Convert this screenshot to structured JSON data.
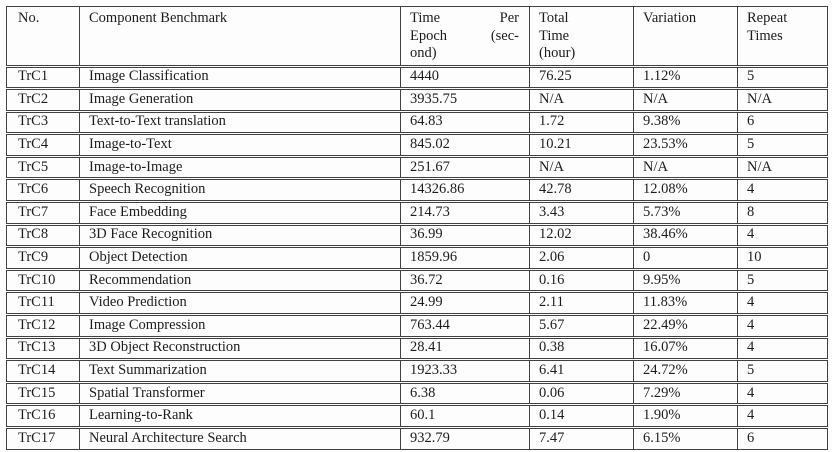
{
  "colors": {
    "background": "#fdfdfd",
    "border": "#414141",
    "text": "#1c1c1c"
  },
  "table": {
    "columns": [
      {
        "id": "no",
        "label": "No."
      },
      {
        "id": "component",
        "label": "Component Benchmark"
      },
      {
        "id": "time-per-epoch",
        "label": "Time Per\nEpoch (sec-\nond)"
      },
      {
        "id": "total-time",
        "label": "Total\nTime\n(hour)"
      },
      {
        "id": "variation",
        "label": "Variation"
      },
      {
        "id": "repeat-times",
        "label": "Repeat\nTimes"
      }
    ],
    "rows": [
      [
        "TrC1",
        "Image Classification",
        "4440",
        "76.25",
        "1.12%",
        "5"
      ],
      [
        "TrC2",
        "Image Generation",
        "3935.75",
        "N/A",
        "N/A",
        "N/A"
      ],
      [
        "TrC3",
        "Text-to-Text translation",
        "64.83",
        "1.72",
        "9.38%",
        "6"
      ],
      [
        "TrC4",
        "Image-to-Text",
        "845.02",
        "10.21",
        "23.53%",
        "5"
      ],
      [
        "TrC5",
        "Image-to-Image",
        "251.67",
        "N/A",
        "N/A",
        "N/A"
      ],
      [
        "TrC6",
        "Speech Recognition",
        "14326.86",
        "42.78",
        "12.08%",
        "4"
      ],
      [
        "TrC7",
        "Face Embedding",
        "214.73",
        "3.43",
        "5.73%",
        "8"
      ],
      [
        "TrC8",
        "3D Face Recognition",
        "36.99",
        "12.02",
        "38.46%",
        "4"
      ],
      [
        "TrC9",
        "Object Detection",
        "1859.96",
        "2.06",
        "0",
        "10"
      ],
      [
        "TrC10",
        "Recommendation",
        "36.72",
        "0.16",
        "9.95%",
        "5"
      ],
      [
        "TrC11",
        "Video Prediction",
        "24.99",
        "2.11",
        "11.83%",
        "4"
      ],
      [
        "TrC12",
        "Image Compression",
        "763.44",
        "5.67",
        "22.49%",
        "4"
      ],
      [
        "TrC13",
        "3D Object Reconstruction",
        "28.41",
        "0.38",
        "16.07%",
        "4"
      ],
      [
        "TrC14",
        "Text Summarization",
        "1923.33",
        "6.41",
        "24.72%",
        "5"
      ],
      [
        "TrC15",
        "Spatial Transformer",
        "6.38",
        "0.06",
        "7.29%",
        "4"
      ],
      [
        "TrC16",
        "Learning-to-Rank",
        "60.1",
        "0.14",
        "1.90%",
        "4"
      ],
      [
        "TrC17",
        "Neural Architecture Search",
        "932.79",
        "7.47",
        "6.15%",
        "6"
      ]
    ]
  }
}
